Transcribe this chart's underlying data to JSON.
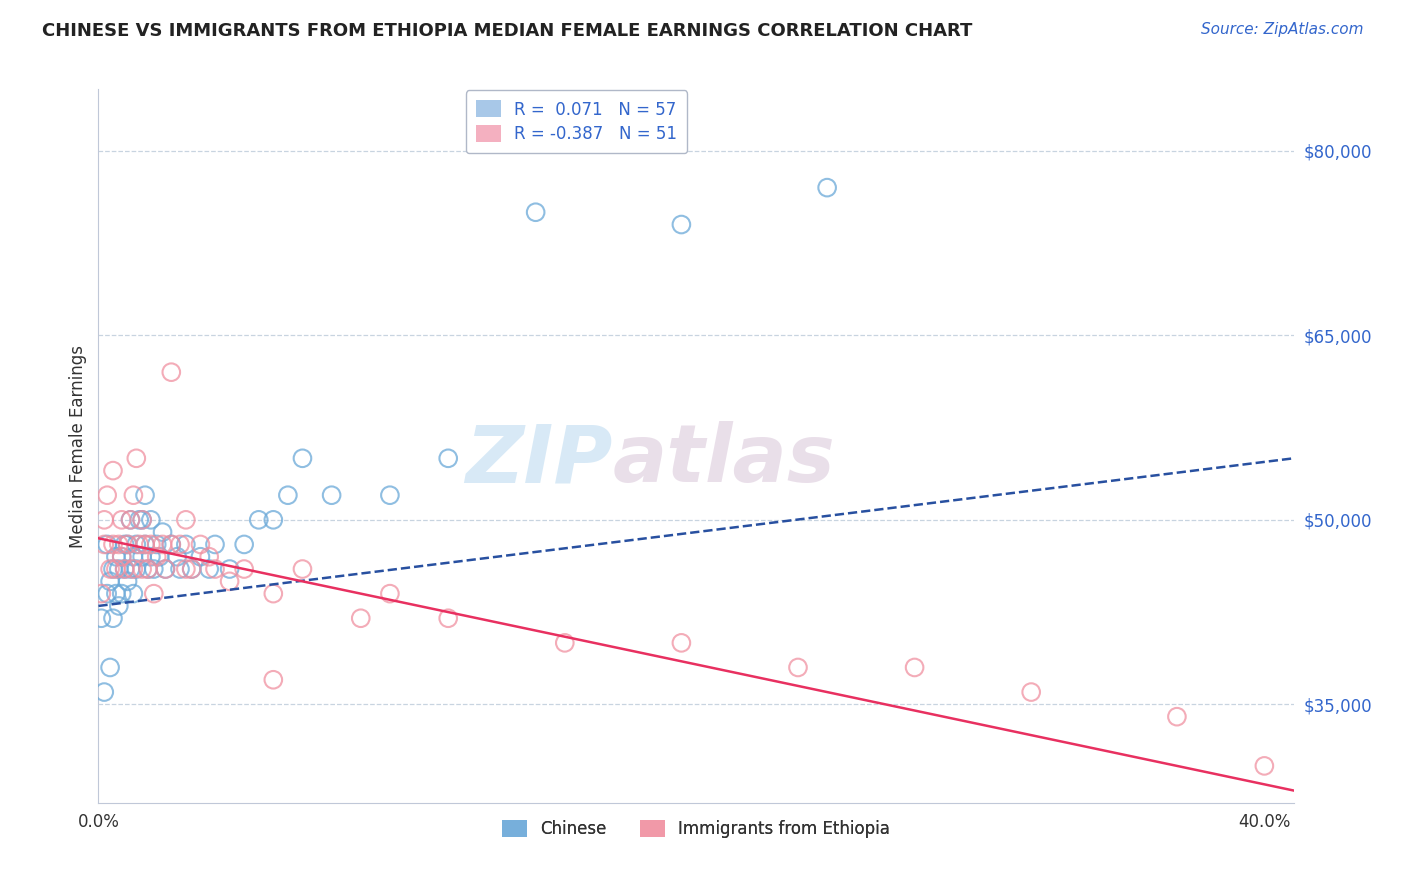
{
  "title": "CHINESE VS IMMIGRANTS FROM ETHIOPIA MEDIAN FEMALE EARNINGS CORRELATION CHART",
  "source": "Source: ZipAtlas.com",
  "ylabel": "Median Female Earnings",
  "ytick_labels": [
    "$35,000",
    "$50,000",
    "$65,000",
    "$80,000"
  ],
  "ytick_values": [
    35000,
    50000,
    65000,
    80000
  ],
  "xtick_labels": [
    "0.0%",
    "40.0%"
  ],
  "xtick_values": [
    0.0,
    0.4
  ],
  "legend_top": [
    {
      "label": "R =  0.071   N = 57",
      "patch_color": "#a8c8e8"
    },
    {
      "label": "R = -0.387   N = 51",
      "patch_color": "#f4b0c0"
    }
  ],
  "legend_bottom_labels": [
    "Chinese",
    "Immigrants from Ethiopia"
  ],
  "watermark": "ZIPatlas",
  "bg_color": "#ffffff",
  "grid_color": "#c8d4e0",
  "chinese_dot_color": "#6aa8d8",
  "ethiopia_dot_color": "#f090a0",
  "chinese_line_color": "#2850a0",
  "ethiopia_line_color": "#e83060",
  "chinese_x": [
    0.001,
    0.002,
    0.003,
    0.003,
    0.004,
    0.004,
    0.005,
    0.005,
    0.006,
    0.006,
    0.007,
    0.007,
    0.008,
    0.008,
    0.009,
    0.009,
    0.01,
    0.01,
    0.011,
    0.011,
    0.012,
    0.012,
    0.013,
    0.013,
    0.014,
    0.015,
    0.015,
    0.016,
    0.016,
    0.017,
    0.018,
    0.018,
    0.019,
    0.02,
    0.021,
    0.022,
    0.023,
    0.025,
    0.027,
    0.028,
    0.03,
    0.032,
    0.035,
    0.038,
    0.04,
    0.045,
    0.05,
    0.055,
    0.06,
    0.065,
    0.07,
    0.08,
    0.1,
    0.12,
    0.15,
    0.2,
    0.25
  ],
  "chinese_y": [
    42000,
    36000,
    44000,
    48000,
    45000,
    38000,
    46000,
    42000,
    44000,
    47000,
    43000,
    46000,
    47000,
    44000,
    46000,
    48000,
    45000,
    48000,
    46000,
    50000,
    47000,
    44000,
    48000,
    46000,
    50000,
    47000,
    50000,
    48000,
    52000,
    46000,
    47000,
    50000,
    46000,
    48000,
    47000,
    49000,
    46000,
    48000,
    47000,
    46000,
    48000,
    46000,
    47000,
    46000,
    48000,
    46000,
    48000,
    50000,
    50000,
    52000,
    55000,
    52000,
    52000,
    55000,
    75000,
    74000,
    77000
  ],
  "ethiopia_x": [
    0.001,
    0.002,
    0.002,
    0.003,
    0.004,
    0.005,
    0.005,
    0.006,
    0.007,
    0.008,
    0.008,
    0.009,
    0.01,
    0.011,
    0.012,
    0.012,
    0.013,
    0.014,
    0.015,
    0.015,
    0.016,
    0.017,
    0.018,
    0.019,
    0.02,
    0.022,
    0.023,
    0.025,
    0.028,
    0.03,
    0.032,
    0.035,
    0.038,
    0.04,
    0.045,
    0.05,
    0.06,
    0.07,
    0.09,
    0.1,
    0.12,
    0.16,
    0.2,
    0.24,
    0.28,
    0.32,
    0.37,
    0.4,
    0.025,
    0.03,
    0.06
  ],
  "ethiopia_y": [
    44000,
    48000,
    50000,
    52000,
    46000,
    48000,
    54000,
    46000,
    48000,
    47000,
    50000,
    46000,
    48000,
    50000,
    46000,
    52000,
    55000,
    48000,
    46000,
    50000,
    48000,
    46000,
    48000,
    44000,
    47000,
    48000,
    46000,
    48000,
    48000,
    46000,
    46000,
    48000,
    47000,
    46000,
    45000,
    46000,
    44000,
    46000,
    42000,
    44000,
    42000,
    40000,
    40000,
    38000,
    38000,
    36000,
    34000,
    30000,
    62000,
    50000,
    37000
  ],
  "xlim": [
    0.0,
    0.41
  ],
  "ylim": [
    27000,
    85000
  ],
  "chinese_trend_x": [
    0.0,
    0.41
  ],
  "chinese_trend_y": [
    43000,
    55000
  ],
  "ethiopia_trend_x": [
    0.0,
    0.41
  ],
  "ethiopia_trend_y": [
    48500,
    28000
  ],
  "title_fontsize": 13,
  "source_fontsize": 11,
  "ylabel_fontsize": 12,
  "tick_fontsize": 12,
  "legend_fontsize": 12,
  "dot_size": 160,
  "dot_linewidth": 1.5
}
